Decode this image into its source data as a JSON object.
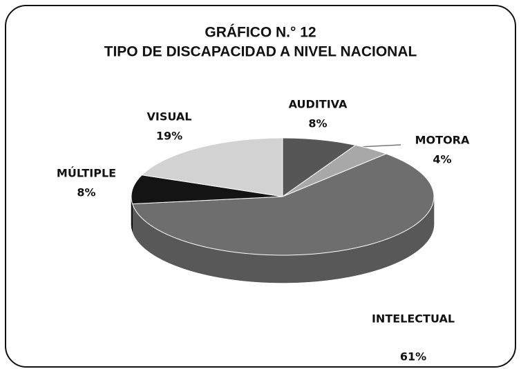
{
  "chart_data": {
    "type": "pie3d",
    "title": "GRÁFICO N.° 12",
    "subtitle": "TIPO DE DISCAPACIDAD A NIVEL NACIONAL",
    "categories": [
      "AUDITIVA",
      "MOTORA",
      "INTELECTUAL",
      "MÚLTIPLE",
      "VISUAL"
    ],
    "values": [
      8,
      4,
      61,
      8,
      19
    ],
    "value_labels": [
      "8%",
      "4%",
      "61%",
      "8%",
      "19%"
    ],
    "colors": [
      "#565656",
      "#a8a8a8",
      "#6e6e6e",
      "#141414",
      "#d2d2d2"
    ]
  }
}
